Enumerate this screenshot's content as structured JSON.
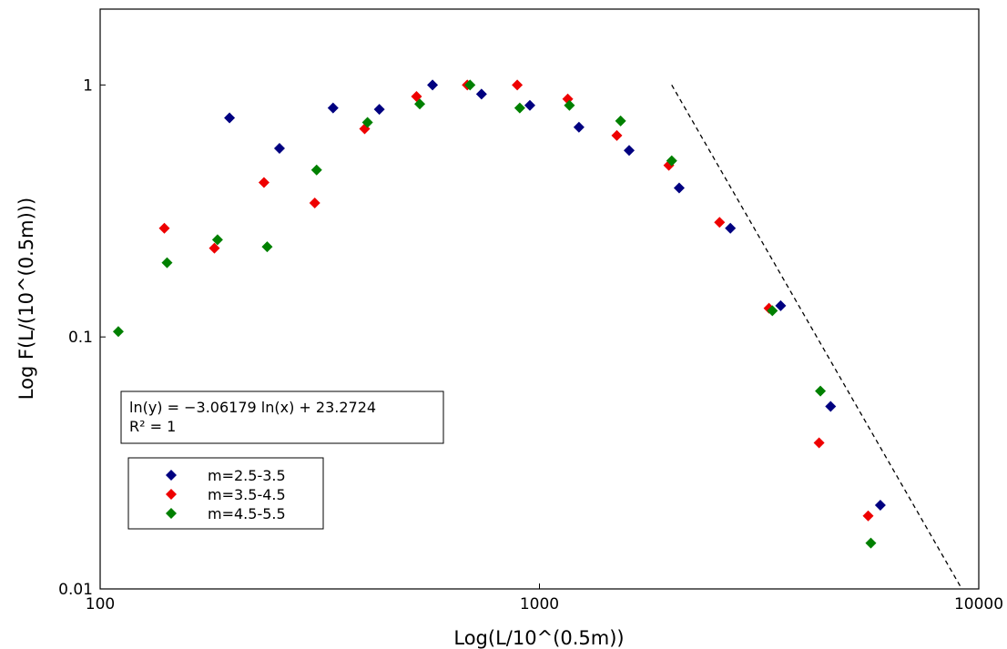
{
  "chart_data": {
    "type": "scatter",
    "title": "",
    "xlabel": "Log(L/10^(0.5m))",
    "ylabel": "Log F(L/(10^(0.5m)))",
    "xscale": "log",
    "yscale": "log",
    "xlim": [
      100,
      10000
    ],
    "ylim": [
      0.01,
      2
    ],
    "xticks": [
      {
        "value": 100,
        "label": "100"
      },
      {
        "value": 1000,
        "label": "1000"
      },
      {
        "value": 10000,
        "label": "10000"
      }
    ],
    "yticks": [
      {
        "value": 0.01,
        "label": "0.01"
      },
      {
        "value": 0.1,
        "label": "0.1"
      },
      {
        "value": 1,
        "label": "1"
      }
    ],
    "grid": false,
    "legend_position": "lower-left",
    "marker": "diamond",
    "series": [
      {
        "name": "m=2.5-3.5",
        "color": "#000080",
        "points": [
          [
            197,
            0.74
          ],
          [
            256,
            0.56
          ],
          [
            339,
            0.81
          ],
          [
            432,
            0.8
          ],
          [
            571,
            1.0
          ],
          [
            738,
            0.92
          ],
          [
            951,
            0.83
          ],
          [
            1230,
            0.68
          ],
          [
            1600,
            0.55
          ],
          [
            2080,
            0.39
          ],
          [
            2720,
            0.27
          ],
          [
            3540,
            0.133
          ],
          [
            4600,
            0.053
          ],
          [
            5970,
            0.0215
          ]
        ]
      },
      {
        "name": "m=3.5-4.5",
        "color": "#ee0000",
        "points": [
          [
            140,
            0.27
          ],
          [
            182,
            0.225
          ],
          [
            236,
            0.41
          ],
          [
            308,
            0.34
          ],
          [
            400,
            0.67
          ],
          [
            525,
            0.9
          ],
          [
            685,
            1.0
          ],
          [
            890,
            1.0
          ],
          [
            1160,
            0.88
          ],
          [
            1500,
            0.63
          ],
          [
            1970,
            0.48
          ],
          [
            2570,
            0.285
          ],
          [
            3330,
            0.13
          ],
          [
            4330,
            0.038
          ],
          [
            5600,
            0.0195
          ]
        ]
      },
      {
        "name": "m=4.5-5.5",
        "color": "#008000",
        "points": [
          [
            110,
            0.105
          ],
          [
            142,
            0.197
          ],
          [
            185,
            0.243
          ],
          [
            240,
            0.228
          ],
          [
            311,
            0.46
          ],
          [
            406,
            0.71
          ],
          [
            534,
            0.84
          ],
          [
            695,
            1.0
          ],
          [
            902,
            0.81
          ],
          [
            1170,
            0.83
          ],
          [
            1530,
            0.72
          ],
          [
            2000,
            0.5
          ],
          [
            3390,
            0.127
          ],
          [
            4360,
            0.061
          ],
          [
            5680,
            0.0152
          ]
        ]
      }
    ],
    "fit_line": {
      "style": "dashed",
      "color": "#000000",
      "points": [
        [
          2000,
          1.0
        ],
        [
          9150,
          0.01
        ]
      ]
    },
    "annotation": {
      "line1": "ln(y) = −3.06179 ln(x) + 23.2724",
      "line2": "R² = 1"
    }
  }
}
